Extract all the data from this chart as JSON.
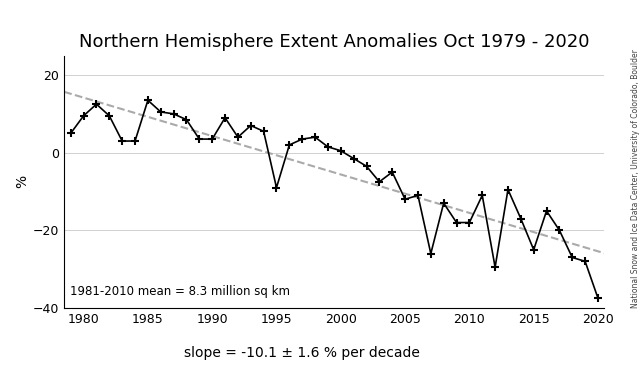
{
  "title": "Northern Hemisphere Extent Anomalies Oct 1979 - 2020",
  "ylabel": "%",
  "slope_label": "slope = -10.1 ± 1.6 % per decade",
  "mean_label": "1981-2010 mean = 8.3 million sq km",
  "watermark": "National Snow and Ice Data Center, University of Colorado, Boulder",
  "years": [
    1979,
    1980,
    1981,
    1982,
    1983,
    1984,
    1985,
    1986,
    1987,
    1988,
    1989,
    1990,
    1991,
    1992,
    1993,
    1994,
    1995,
    1996,
    1997,
    1998,
    1999,
    2000,
    2001,
    2002,
    2003,
    2004,
    2005,
    2006,
    2007,
    2008,
    2009,
    2010,
    2011,
    2012,
    2013,
    2014,
    2015,
    2016,
    2017,
    2018,
    2019,
    2020
  ],
  "values": [
    5.0,
    9.5,
    12.5,
    9.5,
    3.0,
    3.0,
    13.5,
    10.5,
    10.0,
    8.5,
    3.5,
    3.5,
    9.0,
    4.0,
    7.0,
    5.5,
    -9.0,
    2.0,
    3.5,
    4.0,
    1.5,
    0.5,
    -1.5,
    -3.5,
    -7.5,
    -5.0,
    -12.0,
    -11.0,
    -26.0,
    -13.0,
    -18.0,
    -18.0,
    -11.0,
    -29.5,
    -9.5,
    -17.0,
    -25.0,
    -15.0,
    -20.0,
    -27.0,
    -28.0,
    -37.5
  ],
  "line_color": "#000000",
  "trend_color": "#aaaaaa",
  "background_color": "#ffffff",
  "ylim": [
    -40,
    25
  ],
  "yticks": [
    -40,
    -20,
    0,
    20
  ],
  "xlim": [
    1978.5,
    2020.5
  ],
  "xticks": [
    1980,
    1985,
    1990,
    1995,
    2000,
    2005,
    2010,
    2015,
    2020
  ],
  "title_fontsize": 13,
  "label_fontsize": 10,
  "tick_fontsize": 9,
  "watermark_fontsize": 5.5
}
